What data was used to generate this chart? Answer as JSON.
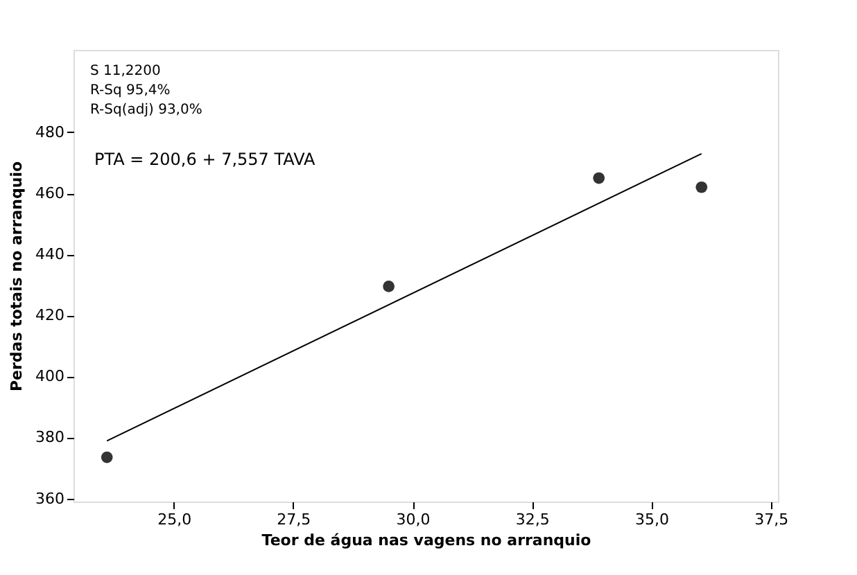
{
  "chart_data": {
    "type": "scatter",
    "xlabel": "Teor de água nas vagens no arranquio",
    "ylabel": "Perdas totais no arranquio",
    "xlim": [
      22.9,
      37.65
    ],
    "ylim": [
      359,
      507
    ],
    "xticks": [
      {
        "value": 25,
        "label": "25,0"
      },
      {
        "value": 27.5,
        "label": "27,5"
      },
      {
        "value": 30,
        "label": "30,0"
      },
      {
        "value": 32.5,
        "label": "32,5"
      },
      {
        "value": 35,
        "label": "35,0"
      },
      {
        "value": 37.5,
        "label": "37,5"
      }
    ],
    "yticks": [
      360,
      380,
      400,
      420,
      440,
      460,
      480
    ],
    "grid": false,
    "marker": "circle",
    "series": [
      {
        "color": "#333333",
        "x": [
          23.6,
          29.5,
          33.9,
          36.05
        ],
        "values": [
          373.5,
          429.5,
          465,
          462
        ]
      },
      {
        "type": "line",
        "color": "#000000",
        "x": [
          23.6,
          36.05
        ],
        "values": [
          378.9,
          473.0
        ],
        "marker": "none",
        "line_style": "solid"
      }
    ],
    "annotations": [
      "S            11,2200",
      "R-Sq            95,4%",
      "R-Sq(adj)    93,0%",
      "PTA =  200,6 + 7,557 TAVA"
    ]
  }
}
